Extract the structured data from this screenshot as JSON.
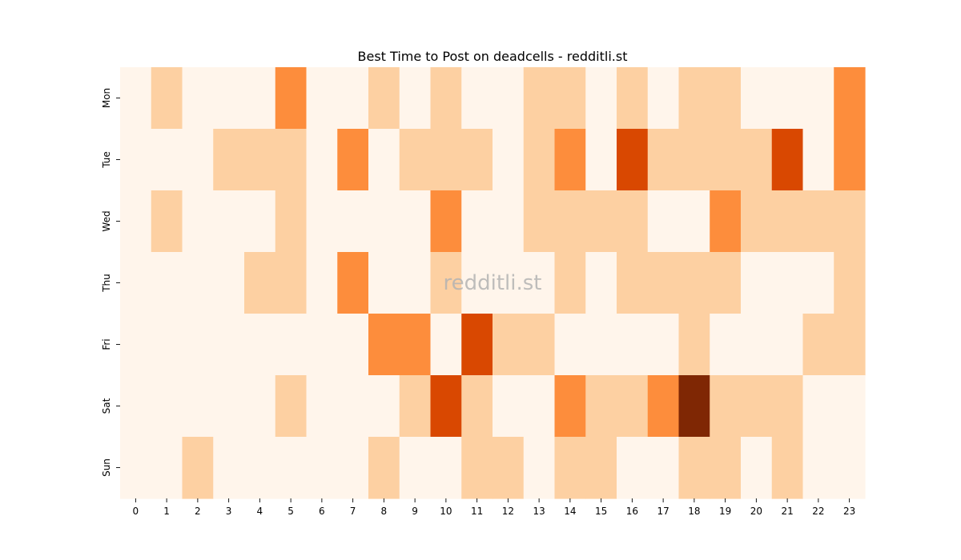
{
  "chart_data": {
    "type": "heatmap",
    "title": "Best Time to Post on deadcells - redditli.st",
    "watermark": "redditli.st",
    "x_categories": [
      "0",
      "1",
      "2",
      "3",
      "4",
      "5",
      "6",
      "7",
      "8",
      "9",
      "10",
      "11",
      "12",
      "13",
      "14",
      "15",
      "16",
      "17",
      "18",
      "19",
      "20",
      "21",
      "22",
      "23"
    ],
    "y_categories": [
      "Mon",
      "Tue",
      "Wed",
      "Thu",
      "Fri",
      "Sat",
      "Sun"
    ],
    "xlabel": "",
    "ylabel": "",
    "colormap": "Oranges",
    "levels": [
      0,
      1,
      2,
      3,
      4
    ],
    "level_colors": [
      "#fff5eb",
      "#fdd0a2",
      "#fd8d3c",
      "#d94801",
      "#7f2704"
    ],
    "values": [
      [
        0,
        1,
        0,
        0,
        0,
        2,
        0,
        0,
        1,
        0,
        1,
        0,
        0,
        1,
        1,
        0,
        1,
        0,
        1,
        1,
        0,
        0,
        0,
        2
      ],
      [
        0,
        0,
        0,
        1,
        1,
        1,
        0,
        2,
        0,
        1,
        1,
        1,
        0,
        1,
        2,
        0,
        3,
        1,
        1,
        1,
        1,
        3,
        0,
        2
      ],
      [
        0,
        1,
        0,
        0,
        0,
        1,
        0,
        0,
        0,
        0,
        2,
        0,
        0,
        1,
        1,
        1,
        1,
        0,
        0,
        2,
        1,
        1,
        1,
        1
      ],
      [
        0,
        0,
        0,
        0,
        1,
        1,
        0,
        2,
        0,
        0,
        1,
        0,
        0,
        0,
        1,
        0,
        1,
        1,
        1,
        1,
        0,
        0,
        0,
        1
      ],
      [
        0,
        0,
        0,
        0,
        0,
        0,
        0,
        0,
        2,
        2,
        0,
        3,
        1,
        1,
        0,
        0,
        0,
        0,
        1,
        0,
        0,
        0,
        1,
        1
      ],
      [
        0,
        0,
        0,
        0,
        0,
        1,
        0,
        0,
        0,
        1,
        3,
        1,
        0,
        0,
        2,
        1,
        1,
        2,
        4,
        1,
        1,
        1,
        0,
        0
      ],
      [
        0,
        0,
        1,
        0,
        0,
        0,
        0,
        0,
        1,
        0,
        0,
        1,
        1,
        0,
        1,
        1,
        0,
        0,
        1,
        1,
        0,
        1,
        0,
        0
      ]
    ],
    "grid": false,
    "legend": "none"
  }
}
